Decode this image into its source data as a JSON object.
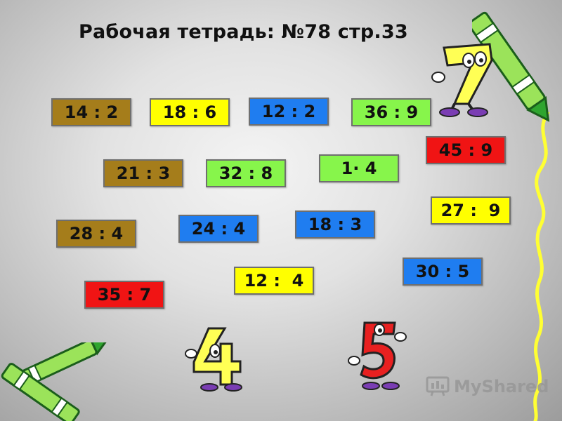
{
  "title": "Рабочая тетрадь: №78 стр.33",
  "colors": {
    "brown": "#a57d1b",
    "yellow": "#ffff00",
    "blue": "#1f7df0",
    "green": "#87f54b",
    "red": "#f01414"
  },
  "cards": [
    {
      "text": "14 : 2",
      "color": "brown"
    },
    {
      "text": "18 : 6",
      "color": "yellow"
    },
    {
      "text": "12 : 2",
      "color": "blue"
    },
    {
      "text": "36 : 9",
      "color": "green"
    },
    {
      "text": "45 : 9",
      "color": "red"
    },
    {
      "text": "21 : 3",
      "color": "brown"
    },
    {
      "text": "32 : 8",
      "color": "green"
    },
    {
      "text": "1· 4",
      "color": "green"
    },
    {
      "text": "27 :  9",
      "color": "yellow"
    },
    {
      "text": "28 : 4",
      "color": "brown"
    },
    {
      "text": "24 : 4",
      "color": "blue"
    },
    {
      "text": "18 : 3",
      "color": "blue"
    },
    {
      "text": "30 : 5",
      "color": "blue"
    },
    {
      "text": "12 :  4",
      "color": "yellow"
    },
    {
      "text": "35 : 7",
      "color": "red"
    }
  ],
  "decorations": {
    "figures": [
      "number-seven-character-icon",
      "number-four-character-icon",
      "number-five-character-icon"
    ],
    "crayons": [
      "green-crayon-icon",
      "green-crayons-icon"
    ],
    "border": "yellow-wavy-line"
  },
  "watermark": {
    "text": "MyShared",
    "icon": "myshared-logo-icon"
  }
}
